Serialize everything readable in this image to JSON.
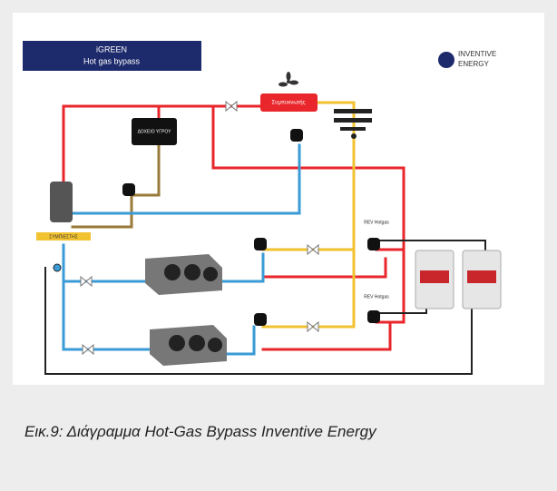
{
  "header": {
    "title": "iGREEN",
    "subtitle": "Hot gas bypass"
  },
  "logo": {
    "line1": "INVENTIVE",
    "line2": "ENERGY"
  },
  "nodes": [
    {
      "label": "Συμπυκνωτής"
    },
    {
      "label": "ΔΟΧΕΙΟ ΥΓΡΟΥ"
    },
    {
      "label": "ΣΥΜΠΙΕΣΤΗΣ"
    },
    {
      "label": "REV Hotgas"
    },
    {
      "label": "REV Hotgas"
    }
  ],
  "caption": "Εικ.9: Διάγραμμα Hot-Gas Bypass Inventive Energy"
}
